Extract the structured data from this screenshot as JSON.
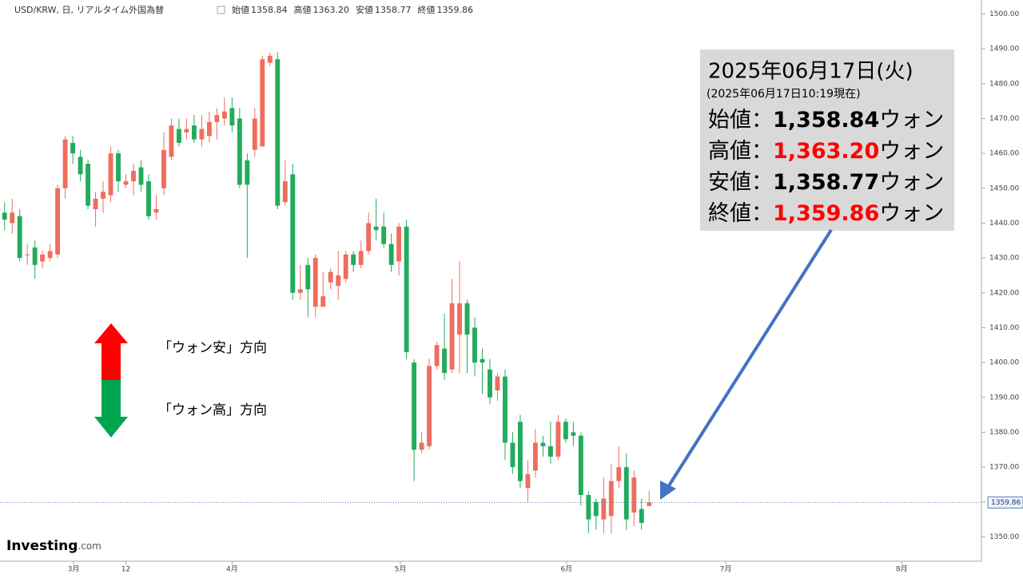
{
  "chart_data": {
    "type": "candlestick",
    "title": "USD/KRW, 日, リアルタイム外国為替",
    "legend": [
      {
        "label": "始値",
        "value": "1358.84"
      },
      {
        "label": "高値",
        "value": "1363.20"
      },
      {
        "label": "安値",
        "value": "1358.77"
      },
      {
        "label": "終値",
        "value": "1359.86"
      }
    ],
    "open": [
      1443,
      1440,
      1442,
      1431,
      1433,
      1429,
      1430,
      1431,
      1450,
      1463,
      1459,
      1457,
      1444,
      1447,
      1448,
      1460,
      1451,
      1452,
      1456,
      1452,
      1443,
      1450,
      1459,
      1467,
      1466,
      1468,
      1464,
      1465,
      1469,
      1470,
      1473,
      1470,
      1458,
      1461,
      1462,
      1486,
      1487,
      1446,
      1454,
      1420,
      1428,
      1416,
      1416,
      1423,
      1422,
      1424,
      1431,
      1428,
      1432,
      1439,
      1439,
      1434,
      1429,
      1439,
      1400,
      1375,
      1376,
      1399,
      1404,
      1398,
      1408,
      1417,
      1410,
      1401,
      1398,
      1392,
      1396,
      1377,
      1383,
      1364,
      1369,
      1377,
      1376,
      1373,
      1383,
      1380,
      1379,
      1362,
      1360,
      1355,
      1356,
      1366,
      1370,
      1357,
      1358,
      1358.84
    ],
    "high": [
      1446,
      1447,
      1444,
      1434,
      1435,
      1432,
      1434,
      1451,
      1465,
      1465,
      1461,
      1458,
      1449,
      1452,
      1462,
      1461,
      1454,
      1457,
      1458,
      1454,
      1448,
      1466,
      1470,
      1470,
      1470,
      1471,
      1471,
      1472,
      1473,
      1476,
      1476,
      1473,
      1460,
      1473,
      1488,
      1489,
      1489,
      1458,
      1457,
      1428,
      1430,
      1431,
      1426,
      1427,
      1432,
      1432,
      1432,
      1435,
      1443,
      1447,
      1443,
      1437,
      1440,
      1441,
      1401,
      1380,
      1401,
      1406,
      1414,
      1424,
      1429,
      1418,
      1413,
      1404,
      1401,
      1397,
      1398,
      1380,
      1385,
      1372,
      1381,
      1379,
      1383,
      1385,
      1384,
      1383,
      1380,
      1363,
      1361,
      1367,
      1371,
      1376,
      1374,
      1369,
      1361,
      1363.2
    ],
    "low": [
      1438,
      1437,
      1429,
      1428,
      1424,
      1427,
      1429,
      1430,
      1447,
      1457,
      1452,
      1444,
      1439,
      1443,
      1446,
      1449,
      1450,
      1448,
      1449,
      1441,
      1441,
      1448,
      1458,
      1462,
      1464,
      1463,
      1462,
      1463,
      1464,
      1468,
      1466,
      1450,
      1430,
      1459,
      1462,
      1485,
      1444,
      1445,
      1418,
      1418,
      1413,
      1413,
      1416,
      1421,
      1418,
      1423,
      1426,
      1427,
      1431,
      1435,
      1433,
      1426,
      1425,
      1401,
      1366,
      1374,
      1375,
      1398,
      1395,
      1397,
      1397,
      1397,
      1396,
      1391,
      1388,
      1389,
      1372,
      1368,
      1364,
      1360,
      1367,
      1373,
      1371,
      1372,
      1377,
      1376,
      1359,
      1351,
      1352,
      1351,
      1351,
      1364,
      1352,
      1353,
      1352,
      1358.77
    ],
    "close": [
      1441,
      1443,
      1430,
      1431,
      1428,
      1431,
      1432,
      1450,
      1464,
      1460,
      1454,
      1445,
      1447,
      1449,
      1460,
      1452,
      1452,
      1455,
      1451,
      1442,
      1444,
      1461,
      1468,
      1463,
      1467,
      1464,
      1467,
      1469,
      1471,
      1472,
      1468,
      1451,
      1451,
      1470,
      1487,
      1488,
      1445,
      1452,
      1420,
      1421,
      1421,
      1430,
      1419,
      1426,
      1425,
      1431,
      1428,
      1432,
      1440,
      1438,
      1434,
      1428,
      1439,
      1403,
      1375,
      1377,
      1399,
      1405,
      1397,
      1417,
      1417,
      1408,
      1400,
      1400,
      1390,
      1396,
      1377,
      1370,
      1366,
      1368,
      1377,
      1376,
      1373,
      1383,
      1378,
      1379,
      1362,
      1355,
      1356,
      1361,
      1366,
      1370,
      1355,
      1367,
      1354,
      1359.86
    ],
    "up_color": "#ee6e5e",
    "down_color": "#22ab5d",
    "xlim": [
      -0.6,
      128.5
    ],
    "xticks": [
      {
        "value": 9.1,
        "label": "3月"
      },
      {
        "value": 16,
        "label": "12"
      },
      {
        "value": 30,
        "label": "4月"
      },
      {
        "value": 52.2,
        "label": "5月"
      },
      {
        "value": 74.1,
        "label": "6月"
      },
      {
        "value": 95.1,
        "label": "7月"
      },
      {
        "value": 118.3,
        "label": "8月"
      }
    ],
    "ylim": [
      1343,
      1504
    ],
    "yticks": [
      {
        "value": 1350,
        "label": "1350.00"
      },
      {
        "value": 1360,
        "label": "1360.00"
      },
      {
        "value": 1370,
        "label": "1370.00"
      },
      {
        "value": 1380,
        "label": "1380.00"
      },
      {
        "value": 1390,
        "label": "1390.00"
      },
      {
        "value": 1400,
        "label": "1400.00"
      },
      {
        "value": 1410,
        "label": "1410.00"
      },
      {
        "value": 1420,
        "label": "1420.00"
      },
      {
        "value": 1430,
        "label": "1430.00"
      },
      {
        "value": 1440,
        "label": "1440.00"
      },
      {
        "value": 1450,
        "label": "1450.00"
      },
      {
        "value": 1460,
        "label": "1460.00"
      },
      {
        "value": 1470,
        "label": "1470.00"
      },
      {
        "value": 1480,
        "label": "1480.00"
      },
      {
        "value": 1490,
        "label": "1490.00"
      },
      {
        "value": 1500,
        "label": "1500.00"
      }
    ],
    "info": {
      "date": "2025年06月17日(火)",
      "asof": "(2025年06月17日10:19現在)",
      "rows": [
        {
          "label": "始値：",
          "value": "1,358.84",
          "unit": "ウォン",
          "color": "#000000"
        },
        {
          "label": "高値：",
          "value": "1,363.20",
          "unit": "ウォン",
          "color": "#ff0000"
        },
        {
          "label": "安値：",
          "value": "1,358.77",
          "unit": "ウォン",
          "color": "#000000"
        },
        {
          "label": "終値：",
          "value": "1,359.86",
          "unit": "ウォン",
          "color": "#ff0000"
        }
      ]
    },
    "direction_up": "「ウォン安」方向",
    "direction_down": "「ウォン高」方向",
    "logo": {
      "brand": "Investing",
      "suffix": ".com"
    }
  }
}
